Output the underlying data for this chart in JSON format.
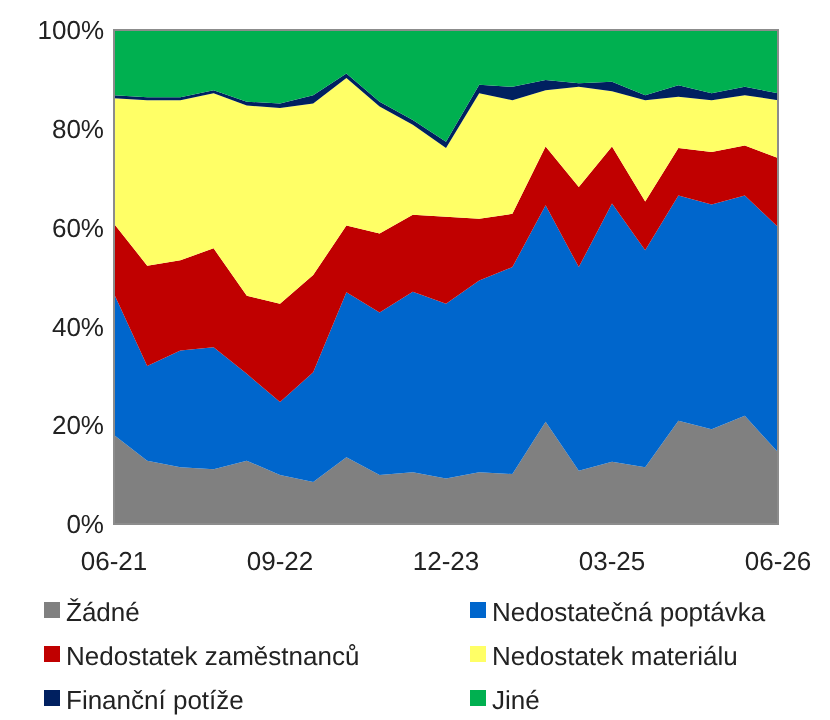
{
  "chart_data": {
    "type": "area",
    "stacked": true,
    "categories": [
      "06-21",
      null,
      null,
      null,
      null,
      "09-22",
      null,
      null,
      null,
      null,
      "12-23",
      null,
      null,
      null,
      null,
      "03-25",
      null,
      null,
      null,
      null,
      "06-26"
    ],
    "ylim": [
      0,
      100
    ],
    "yticks": [
      {
        "value": 0,
        "label": "0%"
      },
      {
        "value": 20,
        "label": "20%"
      },
      {
        "value": 40,
        "label": "40%"
      },
      {
        "value": 60,
        "label": "60%"
      },
      {
        "value": 80,
        "label": "80%"
      },
      {
        "value": 100,
        "label": "100%"
      }
    ],
    "legend": "bottom",
    "series": [
      {
        "name": "Žádné",
        "color": "#808080",
        "values": [
          18,
          12.8,
          11.5,
          11.1,
          12.8,
          9.9,
          8.5,
          13.5,
          9.9,
          10.5,
          9.2,
          10.5,
          10.1,
          20.7,
          10.8,
          12.6,
          11.5,
          20.9,
          19.2,
          21.9,
          14.5
        ]
      },
      {
        "name": "Nedostatečná poptávka",
        "color": "#0066cc",
        "values": [
          28.6,
          19.2,
          23.6,
          24.7,
          17.6,
          14.8,
          22.2,
          33.4,
          32.9,
          36.5,
          35.4,
          38.8,
          41.9,
          43.8,
          41.2,
          52.3,
          43.9,
          45.6,
          45.5,
          44.6,
          45.6
        ]
      },
      {
        "name": "Nedostatek zaměstnanců",
        "color": "#c00000",
        "values": [
          14.2,
          20.3,
          18.3,
          20,
          15.8,
          19.9,
          19.7,
          13.5,
          16,
          15.6,
          17.6,
          12.5,
          10.8,
          11.9,
          16.2,
          11.5,
          9.9,
          9.6,
          10.6,
          10.1,
          14
        ]
      },
      {
        "name": "Nedostatek materiálu",
        "color": "#ffff66",
        "values": [
          25.4,
          33.5,
          32.4,
          31.4,
          38.5,
          39.6,
          34.7,
          29.9,
          25.7,
          18.2,
          13.9,
          25.4,
          23,
          11.4,
          20.3,
          11.2,
          20.5,
          10.4,
          10.5,
          10.2,
          11.7
        ]
      },
      {
        "name": "Finanční potíže",
        "color": "#002060",
        "values": [
          0.6,
          0.6,
          0.6,
          0.6,
          0.8,
          0.9,
          1.7,
          0.9,
          1,
          1,
          1.3,
          1.7,
          2.7,
          2.1,
          0.7,
          1.9,
          1,
          2.3,
          1.4,
          1.7,
          1.4
        ]
      },
      {
        "name": "Jiné",
        "color": "#00b050",
        "values": [
          13.2,
          13.6,
          13.6,
          12.2,
          14.5,
          14.9,
          13.2,
          8.8,
          14.5,
          18.2,
          22.6,
          11.1,
          11.5,
          10.1,
          10.8,
          10.5,
          13.2,
          11.2,
          12.8,
          11.5,
          12.8
        ]
      }
    ]
  }
}
